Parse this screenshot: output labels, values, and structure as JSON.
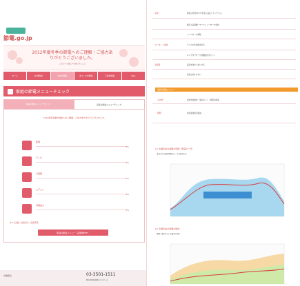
{
  "left": {
    "logo": "節電.go.jp",
    "hero": {
      "title": "2012年度冬季の節電へのご理解・ご協力ありがとうございました。",
      "sub": "これからも省エネを続けましょう"
    },
    "nav": [
      "ホーム",
      "なぜ節電?",
      "家庭の節電",
      "オフィスの節電",
      "工場の節電",
      "Q&A"
    ],
    "section": "家庭の節電メニューチェック",
    "tabs": [
      "家庭の節電メニューチェック",
      "家庭の節電メニューチェック"
    ],
    "intro": "2012年度冬季の節電へのご理解・ご協力ありがとうございました。",
    "rows": [
      {
        "label": "照明",
        "pct": "5%"
      },
      {
        "label": "テレビ",
        "pct": "2%"
      },
      {
        "label": "冷蔵庫",
        "pct": "2%"
      },
      {
        "label": "エアコン",
        "pct": "4%"
      },
      {
        "label": "待機電力",
        "pct": "1%"
      }
    ],
    "legend": "すべて実施 / 実施済み / 実施予定",
    "button": "家庭の節電メニュー（実施例PDF）",
    "footer": {
      "gov": "内閣官房",
      "phone": "03-3501-1511",
      "note": "経済産業省 資源エネルギー庁"
    }
  },
  "right": {
    "table": [
      {
        "k": "空調",
        "v": "暖房は室温20℃を目安に設定してください。"
      },
      {
        "k": "",
        "v": "暖房と扇風機・サーキュレーターの併用"
      },
      {
        "k": "",
        "v": "フィルターの掃除"
      },
      {
        "k": "コンセント電化",
        "v": "テレビの主電源を切る"
      },
      {
        "k": "",
        "v": "ＡＣアダプターの待機電力をカット"
      },
      {
        "k": "冷蔵庫",
        "v": "設定を強から中にする"
      },
      {
        "k": "",
        "v": "詰め込みすぎない"
      }
    ],
    "orange": "家庭の節電メニュー",
    "orange_rows": [
      {
        "k": "その他",
        "v": "温水洗浄便座・電気ポット・照明の節電"
      },
      {
        "k": "照明",
        "v": "電気使用量の削減"
      }
    ],
    "chart1_title": "(1) 冬期の電力需要の特徴（家庭の一日）",
    "chart1_note": "・冬は夕方に電力需要のピークを迎えます。",
    "chart2_title": "(2) 冬期の電力需要の構成",
    "chart2_note": "・家庭で使われている電力の内訳"
  }
}
